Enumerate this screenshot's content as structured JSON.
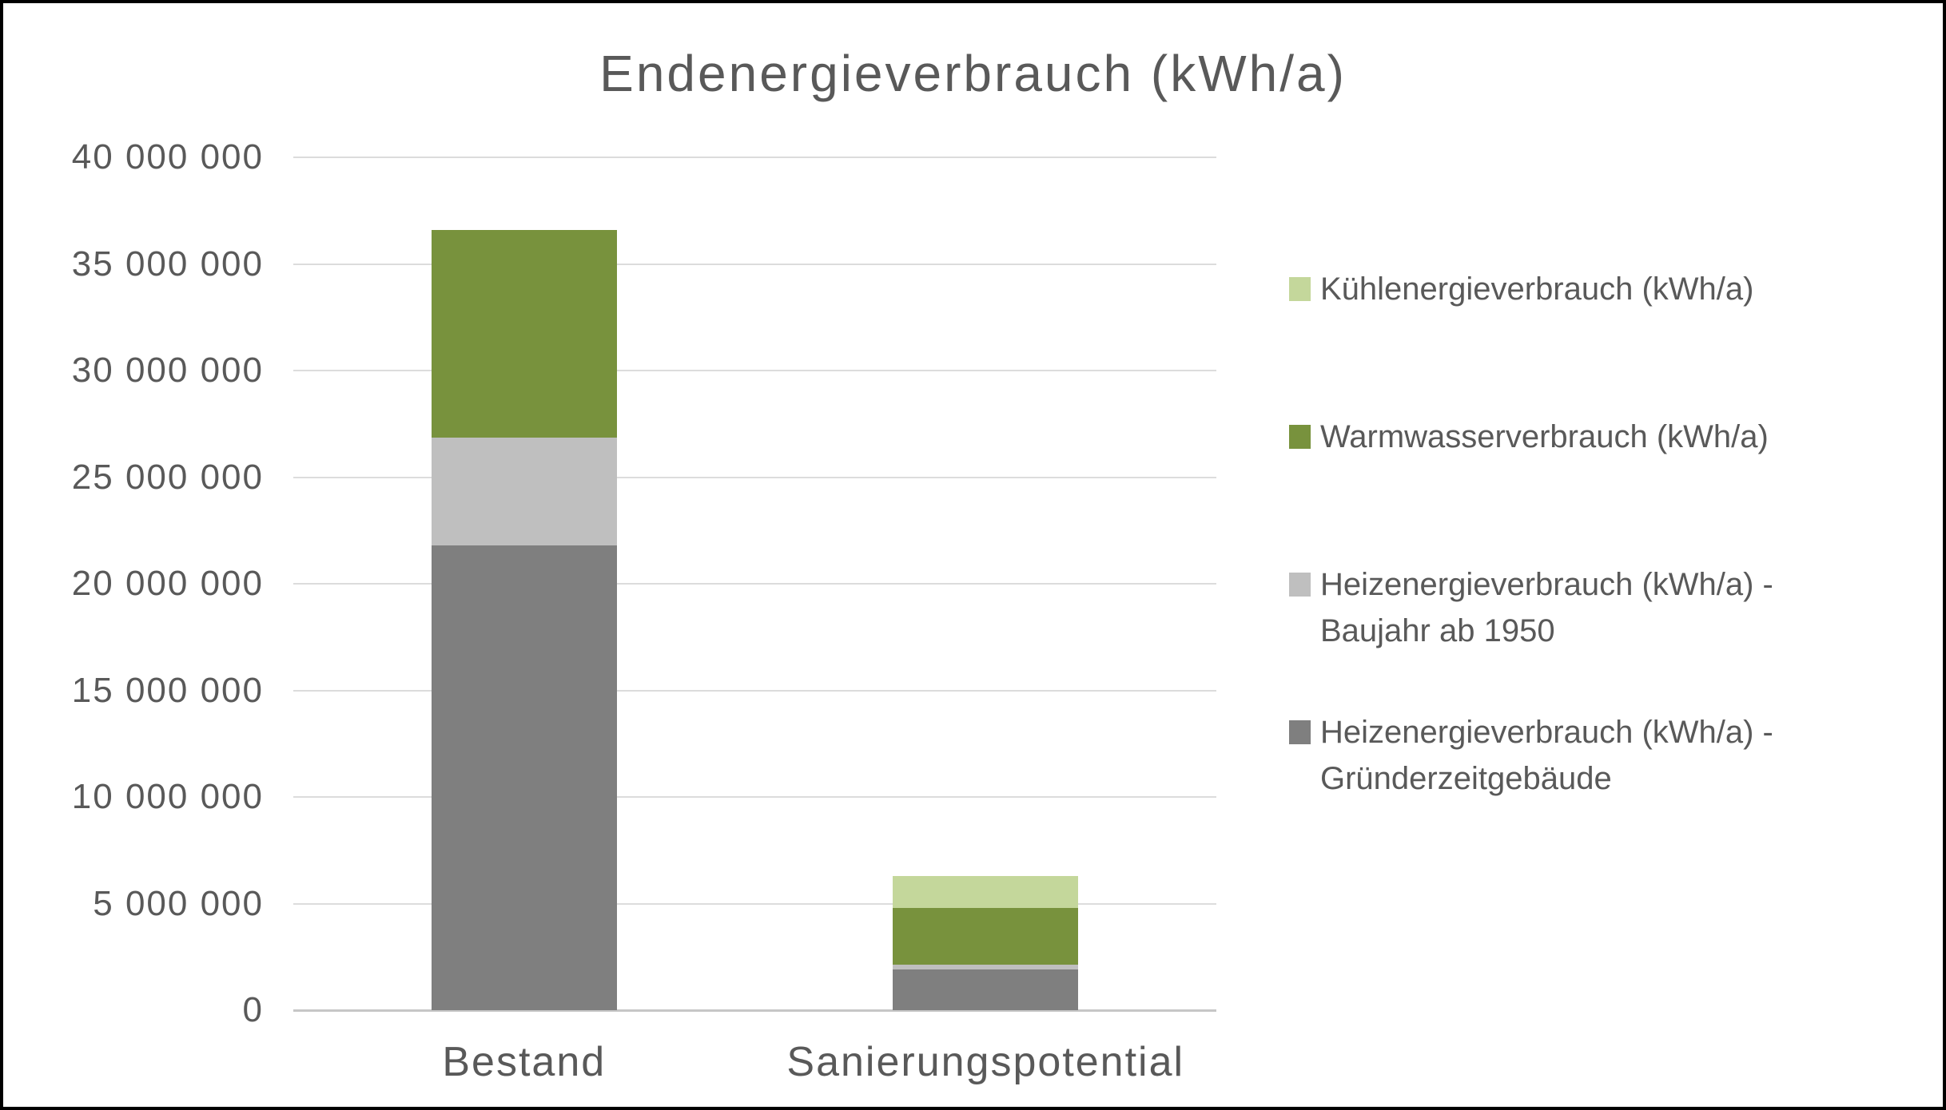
{
  "page": {
    "background": "#ffffff",
    "border_color": "#000000"
  },
  "chart_data": {
    "type": "bar",
    "stacked": true,
    "title": "Endenergieverbrauch (kWh/a)",
    "categories": [
      "Bestand",
      "Sanierungspotential"
    ],
    "category_keys": [
      "bestand",
      "sanierungspotential"
    ],
    "series": [
      {
        "key": "heizenergie-gruenderzeit",
        "name": "Heizenergieverbrauch (kWh/a) - Gründerzeitgebäude",
        "legend_lines": [
          "Heizenergieverbrauch (kWh/a) -",
          "Gründerzeitgebäude"
        ],
        "color": "#7f7f7f",
        "values": [
          21800000,
          1900000
        ]
      },
      {
        "key": "heizenergie-ab1950",
        "name": "Heizenergieverbrauch (kWh/a) - Baujahr ab 1950",
        "legend_lines": [
          "Heizenergieverbrauch (kWh/a) -",
          "Baujahr ab 1950"
        ],
        "color": "#bfbfbf",
        "values": [
          5050000,
          250000
        ]
      },
      {
        "key": "warmwasser",
        "name": "Warmwasserverbrauch (kWh/a)",
        "legend_lines": [
          "Warmwasserverbrauch (kWh/a)"
        ],
        "color": "#78923d",
        "values": [
          9750000,
          2650000
        ]
      },
      {
        "key": "kuehlenergie",
        "name": "Kühlenergieverbrauch (kWh/a)",
        "legend_lines": [
          "Kühlenergieverbrauch (kWh/a)"
        ],
        "color": "#c4d79b",
        "values": [
          0,
          1500000
        ]
      }
    ],
    "ylim": [
      0,
      40000000
    ],
    "y_tick_step": 5000000,
    "y_tick_labels": [
      "0",
      "5 000 000",
      "10 000 000",
      "15 000 000",
      "20 000 000",
      "25 000 000",
      "30 000 000",
      "35 000 000",
      "40 000 000"
    ],
    "grid": true,
    "legend_position": "right",
    "text_color": "#595959",
    "gridline_color": "#dcdcdc",
    "axis_line_color": "#c6c6c6"
  }
}
